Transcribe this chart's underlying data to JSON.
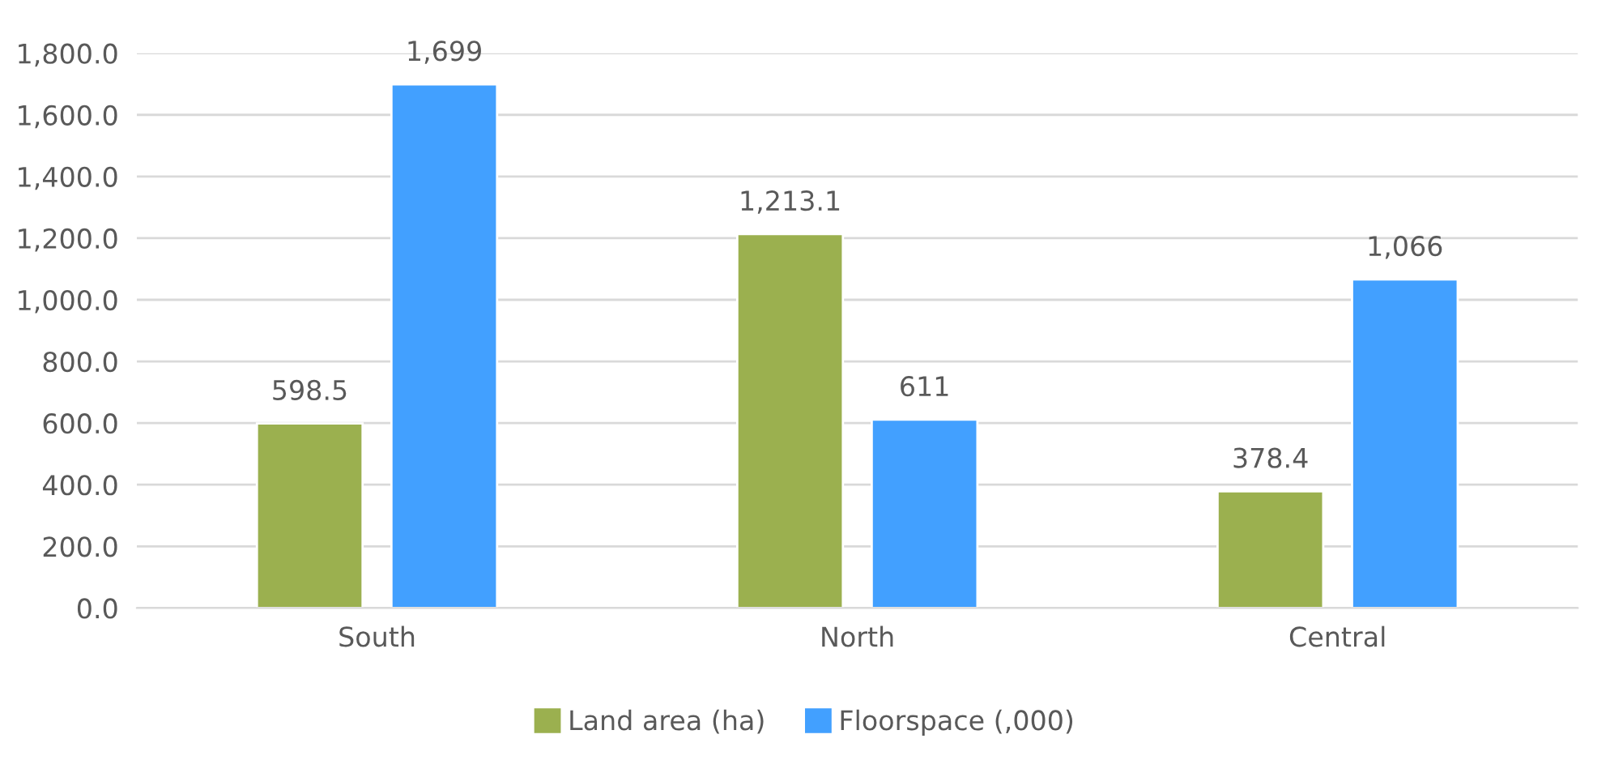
{
  "chart_data": {
    "type": "bar",
    "categories": [
      "South",
      "North",
      "Central"
    ],
    "series": [
      {
        "name": "Land area (ha)",
        "color": "#9bb04f",
        "values": [
          598.5,
          1213.1,
          378.4
        ],
        "value_labels": [
          "598.5",
          "1,213.1",
          "378.4"
        ]
      },
      {
        "name": "Floorspace (,000)",
        "color": "#42a0ff",
        "values": [
          1699,
          611,
          1066
        ],
        "value_labels": [
          "1,699",
          "611",
          "1,066"
        ]
      }
    ],
    "ylim": [
      0,
      1800
    ],
    "yticks": [
      {
        "value": 0,
        "label": "0.0"
      },
      {
        "value": 200,
        "label": "200.0"
      },
      {
        "value": 400,
        "label": "400.0"
      },
      {
        "value": 600,
        "label": "600.0"
      },
      {
        "value": 800,
        "label": "800.0"
      },
      {
        "value": 1000,
        "label": "1,000.0"
      },
      {
        "value": 1200,
        "label": "1,200.0"
      },
      {
        "value": 1400,
        "label": "1,400.0"
      },
      {
        "value": 1600,
        "label": "1,600.0"
      },
      {
        "value": 1800,
        "label": "1,800.0"
      }
    ],
    "grid": "y",
    "legend": "bottom"
  }
}
